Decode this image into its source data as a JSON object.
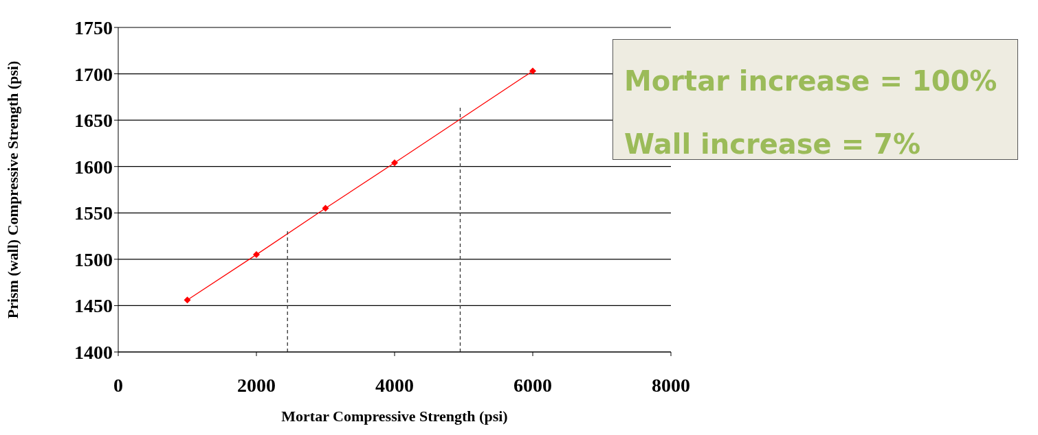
{
  "chart_data": {
    "type": "line",
    "xlabel": "Mortar Compressive Strength (psi)",
    "ylabel": "Prism (wall) Compressive Strength (psi)",
    "xlim": [
      0,
      8000
    ],
    "xticks": [
      0,
      2000,
      4000,
      6000,
      8000
    ],
    "ylim": [
      1400,
      1750
    ],
    "yticks": [
      1400,
      1450,
      1500,
      1550,
      1600,
      1650,
      1700,
      1750
    ],
    "grid": "y",
    "series": [
      {
        "color": "#ff0000",
        "x": [
          1000,
          2000,
          3000,
          4000,
          6000
        ],
        "values": [
          1456,
          1505,
          1555,
          1604,
          1703
        ],
        "marker": "diamond",
        "line_style": "solid"
      },
      {
        "color": "#333333",
        "x": [
          2450,
          2450
        ],
        "values": [
          1400,
          1532
        ],
        "marker": "none",
        "line_style": "dashed"
      },
      {
        "color": "#333333",
        "x": [
          4950,
          4950
        ],
        "values": [
          1400,
          1665
        ],
        "marker": "none",
        "line_style": "dashed"
      }
    ],
    "annotations": [
      "Mortar increase = 100%",
      "Wall increase = 7%"
    ]
  }
}
